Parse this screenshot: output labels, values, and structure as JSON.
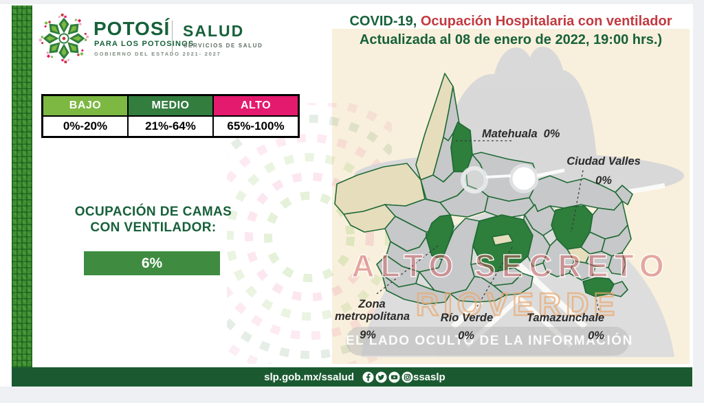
{
  "theme": {
    "page-bg": "#eef0f3",
    "brand-green": "#17613a",
    "brand-red": "#c23a40",
    "footer-green": "#1b5a31",
    "value-green": "#3f8c41",
    "panel-beige": "#f8f0dc",
    "muni-gray": "#c7c8c9",
    "muni-beige": "#e6ddbd",
    "muni-green": "#2e7e3c",
    "muni-border": "#1e6a35",
    "watermark-gray": "#d9dadc"
  },
  "header": {
    "logo": {
      "brand": "POTOSÍ",
      "tagline": "PARA LOS POTOSINOS",
      "government": "GOBIERNO DEL ESTADO 2021- 2027",
      "org": "SALUD",
      "org_subtitle": "SERVICIOS DE SALUD"
    },
    "title": {
      "prefix": "COVID-19,",
      "main": " Ocupación Hospitalaria con ventilador",
      "line2": "Actualizada al 08 de enero de 2022, 19:00 hrs.)"
    }
  },
  "legend": {
    "columns": [
      {
        "label": "BAJO",
        "range": "0%-20%",
        "color": "#7cb842"
      },
      {
        "label": "MEDIO",
        "range": "21%-64%",
        "color": "#337d3f"
      },
      {
        "label": "ALTO",
        "range": "65%-100%",
        "color": "#e41a6e"
      }
    ]
  },
  "summary": {
    "heading_line1": "OCUPACIÓN DE CAMAS",
    "heading_line2": "CON VENTILADOR:",
    "value": "6%"
  },
  "map": {
    "regions": [
      {
        "name": "Matehuala",
        "value": "0%"
      },
      {
        "name": "Ciudad Valles",
        "value": "0%"
      },
      {
        "name": "Zona metropolitana",
        "value": "9%"
      },
      {
        "name": "Río Verde",
        "value": "0%"
      },
      {
        "name": "Tamazunchale",
        "value": "0%"
      }
    ],
    "watermarks": {
      "big": "ALTO SECRETO",
      "script": "RIOVERDE",
      "banner": "EL LADO OCULTO DE LA INFORMACIÓN"
    }
  },
  "footer": {
    "url": "slp.gob.mx/ssalud",
    "handle": "ssaslp",
    "icons": [
      "facebook-icon",
      "twitter-icon",
      "youtube-icon",
      "instagram-icon"
    ]
  }
}
